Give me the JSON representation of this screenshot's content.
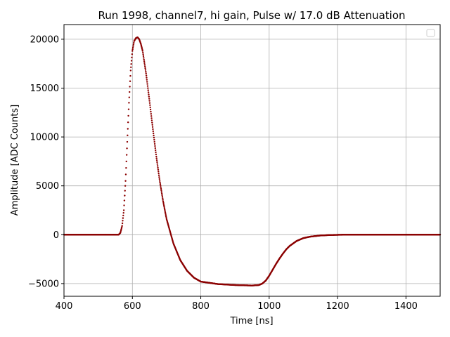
{
  "chart_data": {
    "type": "scatter",
    "title": "Run 1998, channel7, hi gain, Pulse w/ 17.0 dB Attenuation",
    "xlabel": "Time [ns]",
    "ylabel": "Amplitude [ADC Counts]",
    "xlim": [
      400,
      1500
    ],
    "ylim": [
      -6300,
      21500
    ],
    "xticks": [
      400,
      600,
      800,
      1000,
      1200,
      1400
    ],
    "yticks": [
      -5000,
      0,
      5000,
      10000,
      15000,
      20000
    ],
    "grid": true,
    "legend": "top-right (empty)",
    "marker_color": "#8b0000",
    "series": [
      {
        "x": [
          400,
          500,
          560,
          565,
          570,
          575,
          580,
          585,
          590,
          595,
          600,
          605,
          610,
          615,
          620,
          625,
          630,
          640,
          650,
          660,
          670,
          680,
          690,
          700,
          720,
          740,
          760,
          780,
          800,
          850,
          900,
          950,
          970,
          980,
          990,
          1000,
          1010,
          1020,
          1030,
          1040,
          1050,
          1060,
          1080,
          1100,
          1120,
          1150,
          1180,
          1220,
          1300,
          1400,
          1500
        ],
        "y": [
          0,
          0,
          0,
          200,
          900,
          2500,
          5500,
          9500,
          13500,
          16800,
          18800,
          19800,
          20100,
          20200,
          20000,
          19500,
          18800,
          16500,
          13700,
          10800,
          8000,
          5500,
          3400,
          1600,
          -900,
          -2600,
          -3700,
          -4400,
          -4800,
          -5050,
          -5150,
          -5200,
          -5150,
          -5000,
          -4700,
          -4200,
          -3600,
          -3000,
          -2450,
          -1950,
          -1500,
          -1150,
          -650,
          -350,
          -200,
          -80,
          -30,
          0,
          0,
          0,
          0
        ]
      }
    ]
  }
}
